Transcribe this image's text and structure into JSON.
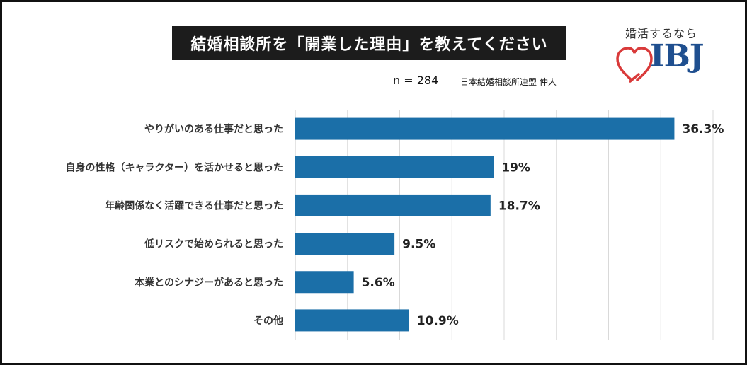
{
  "title": "結婚相談所を「開業した理由」を教えてください",
  "sample": "n = 284",
  "source": "日本結婚相談所連盟 仲人",
  "logo": {
    "tagline": "婚活するなら",
    "name": "IBJ",
    "heart_color": "#d93a3a",
    "text_color": "#1f4f8f"
  },
  "colors": {
    "bar": "#1b6fa8",
    "grid": "#d9d9d9"
  },
  "chart_data": {
    "type": "bar",
    "orientation": "horizontal",
    "categories": [
      "やりがいのある仕事だと思った",
      "自身の性格（キャラクター）を活かせると思った",
      "年齢関係なく活躍できる仕事だと思った",
      "低リスクで始められると思った",
      "本業とのシナジーがあると思った",
      "その他"
    ],
    "values": [
      36.3,
      19,
      18.7,
      9.5,
      5.6,
      10.9
    ],
    "value_labels": [
      "36.3%",
      "19%",
      "18.7%",
      "9.5%",
      "5.6%",
      "10.9%"
    ],
    "xlim": [
      0,
      40
    ],
    "grid": true
  }
}
